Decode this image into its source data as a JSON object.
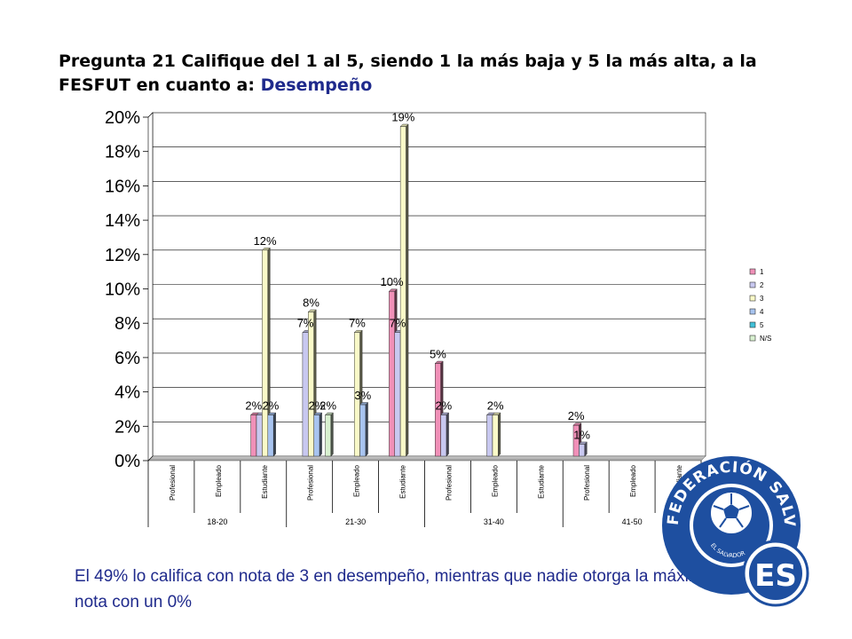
{
  "title": {
    "text": "Pregunta 21 Califique del 1 al 5, siendo 1 la más baja y 5 la más alta, a la FESFUT en cuanto a:",
    "highlight": "Desempeño"
  },
  "caption": "El 49% lo califica con nota de 3 en desempeño, mientras que nadie otorga la máxima nota con un 0%",
  "logo": {
    "arc_text": "FEDERACIÓN SALVADOREÑA DE FÚTBOL",
    "small_text": "EL SALVADOR",
    "badge_text": "ES",
    "colors": {
      "blue": "#1e4fa0",
      "white": "#ffffff"
    }
  },
  "chart_data": {
    "type": "bar",
    "y_ticks": [
      "0%",
      "2%",
      "4%",
      "6%",
      "8%",
      "10%",
      "12%",
      "14%",
      "16%",
      "18%",
      "20%"
    ],
    "ylim": [
      0,
      20
    ],
    "grid": true,
    "legend_position": "right",
    "categories": [
      {
        "label": "Profesional",
        "group": "18-20"
      },
      {
        "label": "Empleado",
        "group": "18-20"
      },
      {
        "label": "Estudiante",
        "group": "18-20"
      },
      {
        "label": "Profesional",
        "group": "21-30"
      },
      {
        "label": "Empleado",
        "group": "21-30"
      },
      {
        "label": "Estudiante",
        "group": "21-30"
      },
      {
        "label": "Profesional",
        "group": "31-40"
      },
      {
        "label": "Empleado",
        "group": "31-40"
      },
      {
        "label": "Estudiante",
        "group": "31-40"
      },
      {
        "label": "Profesional",
        "group": "41-50"
      },
      {
        "label": "Empleado",
        "group": "41-50"
      },
      {
        "label": "Estudiante",
        "group": "41-50"
      }
    ],
    "groups": [
      "18-20",
      "21-30",
      "31-40",
      "41-50"
    ],
    "series": [
      {
        "name": "1",
        "color": "#f090b8",
        "values": [
          0,
          0,
          2.4,
          0,
          0,
          9.6,
          5.4,
          0,
          0,
          1.8,
          0,
          0
        ]
      },
      {
        "name": "2",
        "color": "#c8c8f0",
        "values": [
          0,
          0,
          2.4,
          7.2,
          0,
          7.2,
          2.4,
          2.4,
          0,
          0.7,
          0,
          0
        ]
      },
      {
        "name": "3",
        "color": "#fafac8",
        "values": [
          0,
          0,
          12.0,
          8.4,
          7.2,
          19.2,
          0,
          2.4,
          0,
          0,
          0,
          0
        ]
      },
      {
        "name": "4",
        "color": "#a8c4f0",
        "values": [
          0,
          0,
          2.4,
          2.4,
          3.0,
          0,
          0,
          0,
          0,
          0,
          0,
          0
        ]
      },
      {
        "name": "5",
        "color": "#40c0d8",
        "values": [
          0,
          0,
          0,
          0,
          0,
          0,
          0,
          0,
          0,
          0,
          0,
          0
        ]
      },
      {
        "name": "N/S",
        "color": "#d8f0d0",
        "values": [
          0,
          0,
          0,
          2.4,
          0,
          0,
          0,
          0,
          0,
          0,
          0,
          0
        ]
      }
    ],
    "data_labels": [
      {
        "series": 0,
        "category": 2,
        "text": "2%"
      },
      {
        "series": 2,
        "category": 2,
        "text": "12%"
      },
      {
        "series": 3,
        "category": 2,
        "text": "2%"
      },
      {
        "series": 1,
        "category": 3,
        "text": "7%"
      },
      {
        "series": 2,
        "category": 3,
        "text": "8%"
      },
      {
        "series": 3,
        "category": 3,
        "text": "2%"
      },
      {
        "series": 5,
        "category": 3,
        "text": "2%"
      },
      {
        "series": 2,
        "category": 4,
        "text": "7%"
      },
      {
        "series": 3,
        "category": 4,
        "text": "3%"
      },
      {
        "series": 0,
        "category": 5,
        "text": "10%"
      },
      {
        "series": 1,
        "category": 5,
        "text": "7%"
      },
      {
        "series": 2,
        "category": 5,
        "text": "19%"
      },
      {
        "series": 0,
        "category": 6,
        "text": "5%"
      },
      {
        "series": 1,
        "category": 6,
        "text": "2%"
      },
      {
        "series": 2,
        "category": 7,
        "text": "2%"
      },
      {
        "series": 0,
        "category": 9,
        "text": "2%"
      },
      {
        "series": 1,
        "category": 9,
        "text": "1%"
      }
    ]
  }
}
